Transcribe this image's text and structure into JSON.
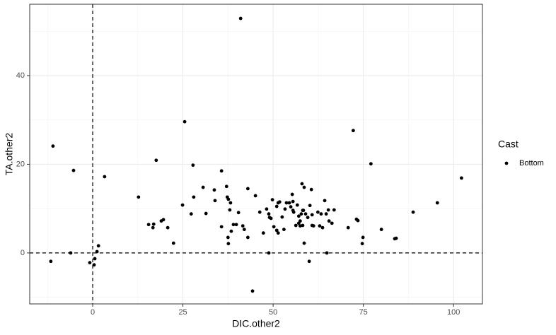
{
  "chart_data": {
    "type": "scatter",
    "x_label": "DIC.other2",
    "y_label": "TA.other2",
    "legend_title": "Cast",
    "legend_position": "right",
    "grid": true,
    "background": "#ffffff",
    "xlim": [
      -17.45,
      108.0
    ],
    "ylim": [
      -11.5,
      56.1
    ],
    "xticks": [
      0,
      25,
      50,
      75,
      100
    ],
    "yticks": [
      0,
      20,
      40
    ],
    "xminor": [
      -12.5,
      12.5,
      37.5,
      62.5,
      87.5
    ],
    "yminor": [
      -10,
      10,
      30,
      50
    ],
    "hline": 0,
    "vline": 0,
    "series": [
      {
        "name": "Bottom",
        "color": "#000000",
        "x": [
          -11.6,
          -11.0,
          -6.1,
          -5.3,
          -0.8,
          0.4,
          0.6,
          1.2,
          1.6,
          3.3,
          12.7,
          15.5,
          16.7,
          16.9,
          17.6,
          19.0,
          19.6,
          20.8,
          22.4,
          24.9,
          25.5,
          27.3,
          27.8,
          28.0,
          30.6,
          31.4,
          33.7,
          33.9,
          35.7,
          35.7,
          37.1,
          37.3,
          37.5,
          37.6,
          37.6,
          38.2,
          38.0,
          38.4,
          39.0,
          39.8,
          40.4,
          41.0,
          41.6,
          42.0,
          43.0,
          43.0,
          44.3,
          45.1,
          46.3,
          47.3,
          48.2,
          48.8,
          48.8,
          49.0,
          49.4,
          49.8,
          50.2,
          51.0,
          51.0,
          51.4,
          51.4,
          51.8,
          52.5,
          53.0,
          53.3,
          53.7,
          54.5,
          54.9,
          55.3,
          55.5,
          55.5,
          55.7,
          56.3,
          56.7,
          57.1,
          57.1,
          57.5,
          57.5,
          57.8,
          58.0,
          58.2,
          58.2,
          58.4,
          58.6,
          58.6,
          59.0,
          59.6,
          60.0,
          60.2,
          60.6,
          60.8,
          60.8,
          61.2,
          62.4,
          62.9,
          63.3,
          63.7,
          64.3,
          64.7,
          64.9,
          65.3,
          65.5,
          66.3,
          66.9,
          70.8,
          72.2,
          73.1,
          73.5,
          74.7,
          74.9,
          77.1,
          80.0,
          83.7,
          84.1,
          88.8,
          95.5,
          102.2
        ],
        "values": [
          -1.9,
          24.1,
          0,
          18.6,
          -2.2,
          -2.7,
          -1.3,
          0.3,
          1.6,
          17.2,
          12.6,
          6.4,
          5.7,
          6.5,
          20.9,
          7.2,
          7.5,
          5.7,
          2.2,
          10.8,
          29.6,
          8.8,
          19.8,
          12.6,
          14.8,
          8.9,
          14.2,
          11.8,
          18.5,
          5.9,
          15.0,
          12.6,
          3.5,
          2.1,
          12.1,
          11.3,
          9.7,
          4.9,
          6.4,
          6.4,
          9.1,
          52.9,
          6.1,
          5.3,
          3.5,
          14.5,
          -8.6,
          12.9,
          9.2,
          4.5,
          9.9,
          8.8,
          0,
          8.0,
          7.8,
          12.0,
          5.9,
          5.1,
          10.5,
          11.3,
          4.5,
          11.5,
          8.1,
          5.3,
          9.9,
          11.3,
          11.3,
          10.4,
          13.2,
          11.6,
          9.6,
          9.2,
          6.2,
          10.8,
          8.3,
          6.7,
          6.1,
          7.2,
          8.8,
          15.6,
          9.6,
          6.2,
          9.6,
          14.8,
          2.2,
          8.8,
          8.0,
          -1.9,
          10.7,
          14.3,
          6.2,
          8.6,
          6.1,
          9.2,
          6.1,
          8.8,
          5.7,
          11.8,
          8.8,
          0,
          9.7,
          7.2,
          6.7,
          9.7,
          5.7,
          27.6,
          7.6,
          7.3,
          2.1,
          3.5,
          20.1,
          5.3,
          3.2,
          3.3,
          9.2,
          11.3,
          16.9
        ]
      }
    ]
  }
}
